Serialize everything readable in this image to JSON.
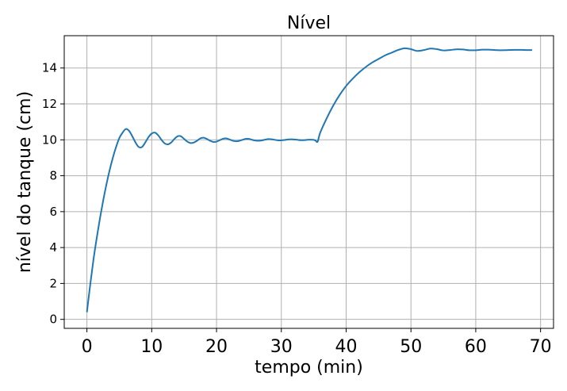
{
  "chart_data": {
    "type": "line",
    "title": "Nível",
    "xlabel": "tempo (min)",
    "ylabel": "nível do tanque (cm)",
    "xlim": [
      -3.5,
      72
    ],
    "ylim": [
      -0.5,
      15.8
    ],
    "xticks": [
      0,
      10,
      20,
      30,
      40,
      50,
      60,
      70
    ],
    "yticks": [
      0,
      2,
      4,
      6,
      8,
      10,
      12,
      14
    ],
    "grid": true,
    "legend": "none",
    "series": [
      {
        "color": "#1f77b4",
        "x": [
          0,
          0.5,
          1,
          1.5,
          2,
          2.5,
          3,
          3.5,
          4,
          4.5,
          5,
          5.5,
          6,
          6.5,
          7,
          7.5,
          8,
          8.5,
          9,
          9.5,
          10,
          10.5,
          11,
          11.5,
          12,
          12.5,
          13,
          13.5,
          14,
          14.5,
          15,
          15.5,
          16,
          16.5,
          17,
          17.5,
          18,
          18.5,
          19,
          19.5,
          20,
          20.5,
          21,
          21.5,
          22,
          22.5,
          23,
          23.5,
          24,
          24.5,
          25,
          25.5,
          26,
          26.5,
          27,
          27.5,
          28,
          28.5,
          29,
          29.5,
          30,
          30.5,
          31,
          31.5,
          32,
          32.5,
          33,
          33.5,
          34,
          34.5,
          35,
          35.3,
          35.6,
          36,
          37,
          38,
          39,
          40,
          41,
          42,
          43,
          44,
          45,
          46,
          47,
          48,
          49,
          50,
          51,
          52,
          53,
          54,
          55,
          56,
          57,
          58,
          59,
          60,
          61,
          62,
          63,
          64,
          65,
          66,
          67,
          68,
          68.7
        ],
        "y": [
          0.4,
          1.9,
          3.3,
          4.5,
          5.6,
          6.6,
          7.5,
          8.3,
          9.0,
          9.6,
          10.1,
          10.4,
          10.6,
          10.5,
          10.2,
          9.85,
          9.6,
          9.6,
          9.85,
          10.15,
          10.35,
          10.4,
          10.25,
          10.0,
          9.8,
          9.75,
          9.85,
          10.05,
          10.2,
          10.2,
          10.05,
          9.9,
          9.82,
          9.85,
          9.95,
          10.08,
          10.12,
          10.05,
          9.95,
          9.88,
          9.9,
          9.98,
          10.06,
          10.08,
          10.02,
          9.95,
          9.92,
          9.94,
          10.0,
          10.05,
          10.05,
          10.0,
          9.96,
          9.95,
          9.97,
          10.01,
          10.04,
          10.03,
          10.0,
          9.97,
          9.97,
          9.99,
          10.02,
          10.03,
          10.02,
          10.0,
          9.98,
          9.98,
          10.0,
          10.01,
          10.0,
          9.95,
          9.9,
          10.4,
          11.2,
          11.9,
          12.5,
          13.0,
          13.4,
          13.75,
          14.05,
          14.3,
          14.5,
          14.7,
          14.85,
          15.0,
          15.1,
          15.05,
          14.95,
          15.0,
          15.08,
          15.05,
          14.98,
          15.0,
          15.04,
          15.03,
          14.99,
          14.99,
          15.02,
          15.02,
          15.0,
          14.99,
          15.0,
          15.01,
          15.01,
          15.0,
          15.0
        ]
      }
    ]
  }
}
